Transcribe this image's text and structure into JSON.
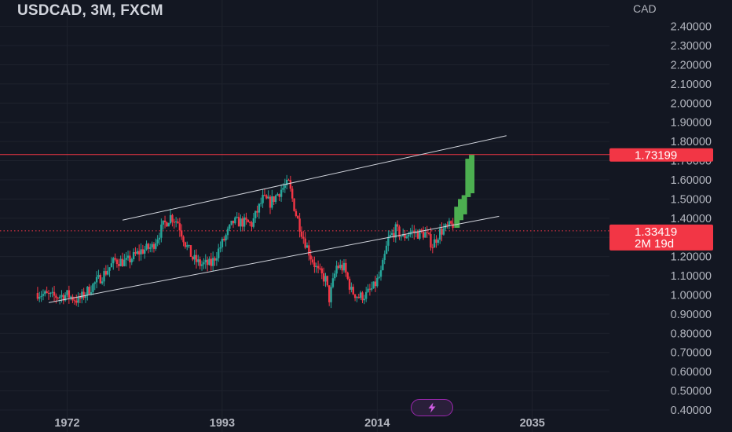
{
  "header": {
    "title": "USDCAD, 3M, FXCM"
  },
  "axis": {
    "unit": "CAD"
  },
  "price_tags": {
    "target": {
      "value": "1.73199",
      "color": "#f23645"
    },
    "last": {
      "value": "1.33419",
      "countdown": "2M 19d",
      "color": "#f23645"
    }
  },
  "colors": {
    "background": "#131722",
    "up": "#26a69a",
    "down": "#f23645",
    "projection": "#4caf50",
    "channel": "#d1d4dc",
    "grid": "#1e222d"
  },
  "badge": {
    "icon": "lightning-icon",
    "color": "#9c27b0"
  },
  "chart_data": {
    "type": "candlestick",
    "title": "USDCAD, 3M, FXCM",
    "xlabel": "",
    "ylabel": "CAD",
    "x_ticks": [
      "1972",
      "1993",
      "2014",
      "2035"
    ],
    "y_ticks": [
      "0.40000",
      "0.50000",
      "0.60000",
      "0.70000",
      "0.80000",
      "0.90000",
      "1.00000",
      "1.10000",
      "1.20000",
      "1.30000",
      "1.40000",
      "1.50000",
      "1.60000",
      "1.70000",
      "1.80000",
      "1.90000",
      "2.00000",
      "2.10000",
      "2.20000",
      "2.30000",
      "2.40000"
    ],
    "ylim": [
      0.38,
      2.52
    ],
    "xlim": [
      1965.8,
      2045.2
    ],
    "grid": true,
    "horizontal_lines": [
      {
        "value": 1.73199,
        "style": "solid"
      },
      {
        "value": 1.33419,
        "style": "dotted"
      }
    ],
    "channel": {
      "upper": [
        [
          1979.5,
          1.39
        ],
        [
          2031.5,
          1.83
        ]
      ],
      "lower": [
        [
          1969.5,
          0.96
        ],
        [
          2030.5,
          1.41
        ]
      ]
    },
    "price_path": [
      [
        1968.0,
        1.01
      ],
      [
        1970.0,
        0.99
      ],
      [
        1972.0,
        1.0
      ],
      [
        1973.5,
        0.97
      ],
      [
        1975.0,
        1.03
      ],
      [
        1977.0,
        1.11
      ],
      [
        1978.5,
        1.18
      ],
      [
        1980.0,
        1.17
      ],
      [
        1982.0,
        1.23
      ],
      [
        1983.5,
        1.25
      ],
      [
        1985.0,
        1.36
      ],
      [
        1986.0,
        1.41
      ],
      [
        1987.0,
        1.38
      ],
      [
        1988.0,
        1.27
      ],
      [
        1989.0,
        1.19
      ],
      [
        1990.0,
        1.16
      ],
      [
        1991.5,
        1.16
      ],
      [
        1993.0,
        1.27
      ],
      [
        1994.5,
        1.38
      ],
      [
        1995.5,
        1.38
      ],
      [
        1997.0,
        1.37
      ],
      [
        1998.5,
        1.5
      ],
      [
        1999.5,
        1.48
      ],
      [
        2001.0,
        1.55
      ],
      [
        2002.0,
        1.58
      ],
      [
        2003.0,
        1.42
      ],
      [
        2004.0,
        1.3
      ],
      [
        2005.0,
        1.2
      ],
      [
        2006.0,
        1.12
      ],
      [
        2007.0,
        1.08
      ],
      [
        2007.5,
        0.98
      ],
      [
        2008.5,
        1.15
      ],
      [
        2009.5,
        1.14
      ],
      [
        2010.5,
        1.02
      ],
      [
        2011.5,
        0.99
      ],
      [
        2012.5,
        1.0
      ],
      [
        2013.5,
        1.04
      ],
      [
        2014.5,
        1.11
      ],
      [
        2015.5,
        1.29
      ],
      [
        2016.5,
        1.34
      ],
      [
        2017.5,
        1.3
      ],
      [
        2018.5,
        1.33
      ],
      [
        2019.5,
        1.32
      ],
      [
        2020.5,
        1.32
      ],
      [
        2021.5,
        1.26
      ],
      [
        2022.5,
        1.33
      ],
      [
        2023.5,
        1.35
      ],
      [
        2024.3,
        1.37
      ]
    ],
    "projection": [
      {
        "x": 2024.8,
        "low": 1.35,
        "high": 1.46
      },
      {
        "x": 2025.3,
        "low": 1.39,
        "high": 1.5
      },
      {
        "x": 2025.8,
        "low": 1.42,
        "high": 1.52
      },
      {
        "x": 2026.3,
        "low": 1.51,
        "high": 1.71
      },
      {
        "x": 2026.8,
        "low": 1.53,
        "high": 1.73
      }
    ]
  }
}
